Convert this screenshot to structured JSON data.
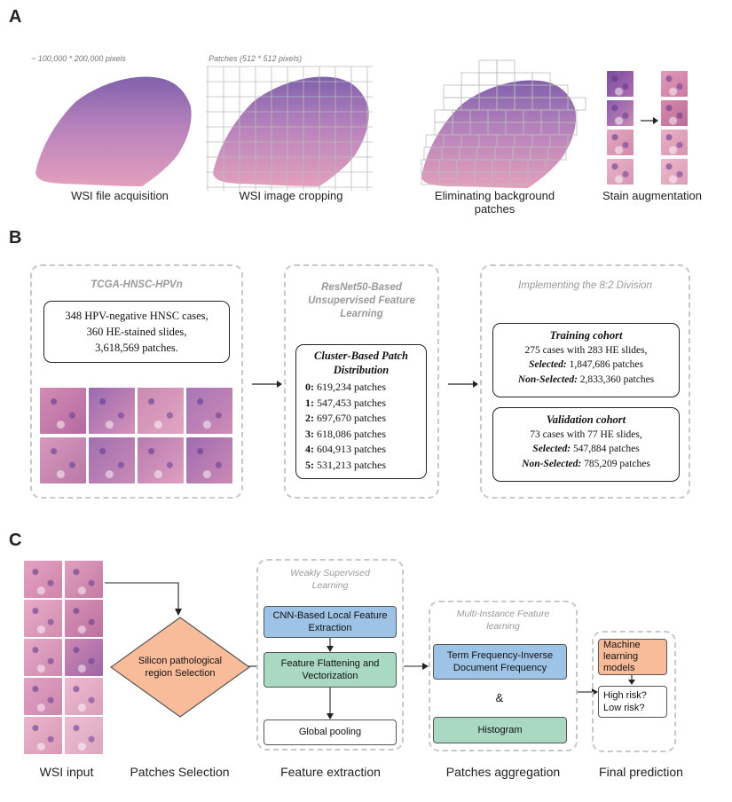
{
  "panel_a": {
    "letter": "A",
    "wsi_size_note": "~ 100,000 * 200,000 pixels",
    "patch_size_note": "Patches (512 * 512 pixels)",
    "steps": [
      "WSI file acquisition",
      "WSI image cropping",
      "Eliminating background patches",
      "Stain augmentation"
    ]
  },
  "panel_b": {
    "letter": "B",
    "dataset": {
      "title": "TCGA-HNSC-HPVn",
      "lines": [
        "348 HPV-negative HNSC cases,",
        "360 HE-stained slides,",
        "3,618,569 patches."
      ]
    },
    "resnet": {
      "title": "ResNet50-Based Unsupervised Feature Learning",
      "cluster_title": "Cluster-Based Patch Distribution",
      "clusters": [
        {
          "id": "0:",
          "text": "619,234 patches"
        },
        {
          "id": "1:",
          "text": "547,453 patches"
        },
        {
          "id": "2:",
          "text": "697,670 patches"
        },
        {
          "id": "3:",
          "text": "618,086 patches"
        },
        {
          "id": "4:",
          "text": "604,913 patches"
        },
        {
          "id": "5:",
          "text": "531,213 patches"
        }
      ]
    },
    "division": {
      "title": "Implementing the 8:2 Division",
      "training": {
        "title": "Training cohort",
        "cases": "275 cases with 283 HE slides,",
        "selected_label": "Selected:",
        "selected_value": "1,847,686 patches",
        "nonselected_label": "Non-Selected:",
        "nonselected_value": "2,833,360 patches"
      },
      "validation": {
        "title": "Validation cohort",
        "cases": "73 cases with 77 HE slides,",
        "selected_label": "Selected:",
        "selected_value": "547,884 patches",
        "nonselected_label": "Non-Selected:",
        "nonselected_value": "785,209 patches"
      }
    }
  },
  "panel_c": {
    "letter": "C",
    "diamond": "Silicon pathological region Selection",
    "weak": {
      "title": "Weakly Supervised Learning",
      "cnn": "CNN-Based Local Feature Extraction",
      "flatten": "Feature Flattening and Vectorization",
      "pooling": "Global pooling"
    },
    "mil": {
      "title": "Multi-Instance Feature learning",
      "tfidf": "Term Frequency-Inverse Document Frequency",
      "amp": "&",
      "histogram": "Histogram"
    },
    "final": {
      "ml": "Machine learning models",
      "risk": "High risk? Low risk?"
    },
    "captions": [
      "WSI input",
      "Patches Selection",
      "Feature extraction",
      "Patches aggregation",
      "Final prediction"
    ]
  },
  "colors": {
    "blue_box": "#9dc3e6",
    "green_box": "#a9d8c3",
    "orange_box": "#f8bc9b",
    "tissue_pink": "#d98fb0",
    "tissue_purple": "#6a4a9a"
  }
}
